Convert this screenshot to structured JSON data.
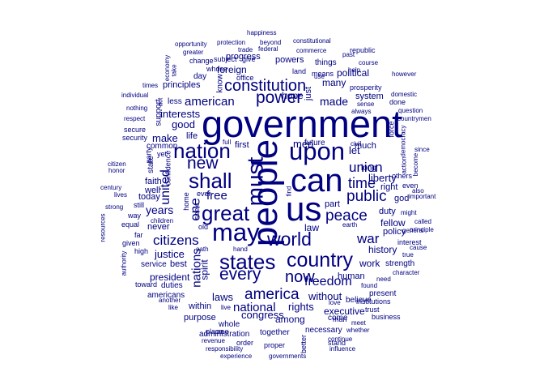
{
  "word_cloud": {
    "color": "#000080",
    "words": [
      "government",
      "people",
      "can",
      "us",
      "upon",
      "must",
      "may",
      "nation",
      "shall",
      "great",
      "states",
      "country",
      "world",
      "every",
      "new",
      "power",
      "constitution",
      "now",
      "america",
      "peace",
      "public",
      "union",
      "time",
      "one",
      "united",
      "war",
      "citizens",
      "freedom",
      "american",
      "national",
      "free",
      "years",
      "justice",
      "made",
      "president",
      "nations",
      "laws",
      "liberty",
      "rights",
      "good",
      "interests",
      "make",
      "let",
      "without",
      "congress",
      "history",
      "men",
      "law",
      "hope",
      "many",
      "executive",
      "work",
      "among",
      "political",
      "spirit",
      "together",
      "administration",
      "best",
      "whole",
      "fellow",
      "part",
      "duty",
      "within",
      "purpose",
      "much",
      "policy",
      "foreign",
      "principles",
      "life",
      "human",
      "progress",
      "system",
      "first",
      "powers",
      "today",
      "well",
      "never",
      "faith",
      "right",
      "duties",
      "americans",
      "necessary",
      "come",
      "strength",
      "god",
      "service",
      "future",
      "long",
      "just",
      "know",
      "state",
      "common",
      "office",
      "less",
      "day",
      "change",
      "things",
      "present",
      "believe",
      "support",
      "institutions",
      "trust",
      "means",
      "party",
      "land",
      "business",
      "use",
      "republic",
      "interest",
      "done",
      "security",
      "confidence",
      "place",
      "yet",
      "secure",
      "order",
      "stand",
      "full",
      "even",
      "others",
      "old",
      "man",
      "force",
      "prosperity",
      "home",
      "seek",
      "ever",
      "high",
      "far",
      "given",
      "way",
      "equal",
      "still",
      "federal",
      "commerce",
      "protection",
      "beyond",
      "constitutional",
      "happiness",
      "trade",
      "give",
      "subject",
      "greater",
      "opportunity",
      "whose",
      "take",
      "economy",
      "times",
      "individual",
      "nothing",
      "respect",
      "act",
      "toward",
      "another",
      "like",
      "revenue",
      "responsibility",
      "experience",
      "governments",
      "proper",
      "see",
      "live",
      "hand",
      "oath",
      "children",
      "strong",
      "century",
      "citizen",
      "honor",
      "lives",
      "resources",
      "authority",
      "character",
      "question",
      "countrymen",
      "democracy",
      "civil",
      "since",
      "become",
      "action",
      "called",
      "cause",
      "important",
      "might",
      "general",
      "principle",
      "true",
      "need",
      "found",
      "meet",
      "whether",
      "continue",
      "influence",
      "better",
      "earth",
      "love",
      "always",
      "sense",
      "domestic",
      "however",
      "help",
      "course",
      "past",
      "also",
      "find"
    ]
  }
}
